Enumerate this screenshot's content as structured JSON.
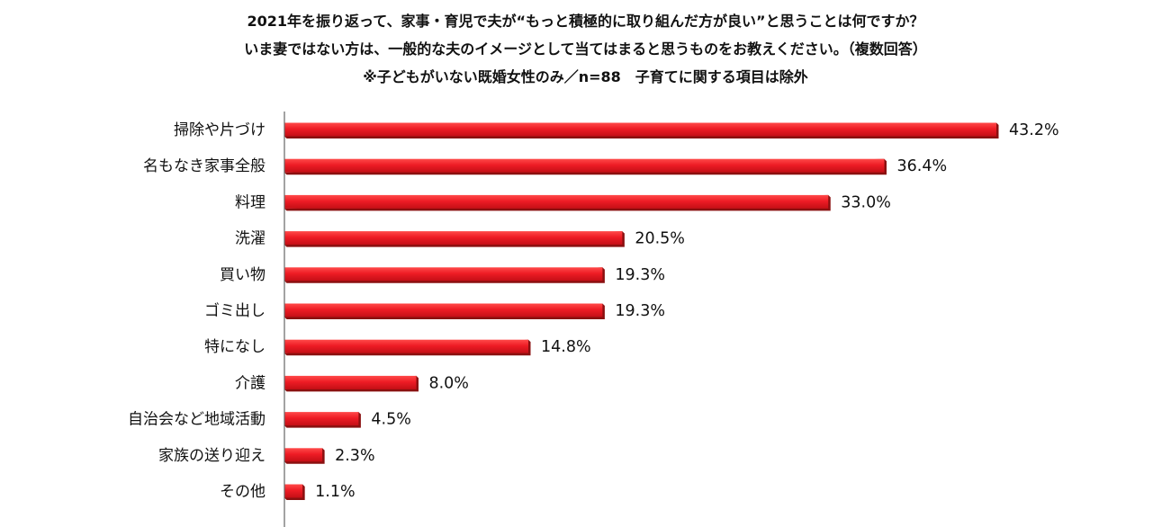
{
  "titles": [
    "2021年を振り返って、家事・育児で夫が“もっと積極的に取り組んだ方が良い”と思うことは何ですか？",
    "いま妻ではない方は、一般的な夫のイメージとして当てはまると思うものをお教えください。（複数回答）",
    "※子どもがいない既婚女性のみ／n=88　子育てに関する項目は除外"
  ],
  "colors": {
    "bar": "#ee1c25",
    "bar_shadow": "#8a1010",
    "axis": "#666666"
  },
  "chart_data": {
    "type": "bar",
    "orientation": "horizontal",
    "categories": [
      "掃除や片づけ",
      "名もなき家事全般",
      "料理",
      "洗濯",
      "買い物",
      "ゴミ出し",
      "特になし",
      "介護",
      "自治会など地域活動",
      "家族の送り迎え",
      "その他"
    ],
    "values": [
      43.2,
      36.4,
      33.0,
      20.5,
      19.3,
      19.3,
      14.8,
      8.0,
      4.5,
      2.3,
      1.1
    ],
    "labels": [
      "43.2%",
      "36.4%",
      "33.0%",
      "20.5%",
      "19.3%",
      "19.3%",
      "14.8%",
      "8.0%",
      "4.5%",
      "2.3%",
      "1.1%"
    ],
    "xlim": [
      0,
      45
    ],
    "grid": false,
    "legend": "none"
  }
}
